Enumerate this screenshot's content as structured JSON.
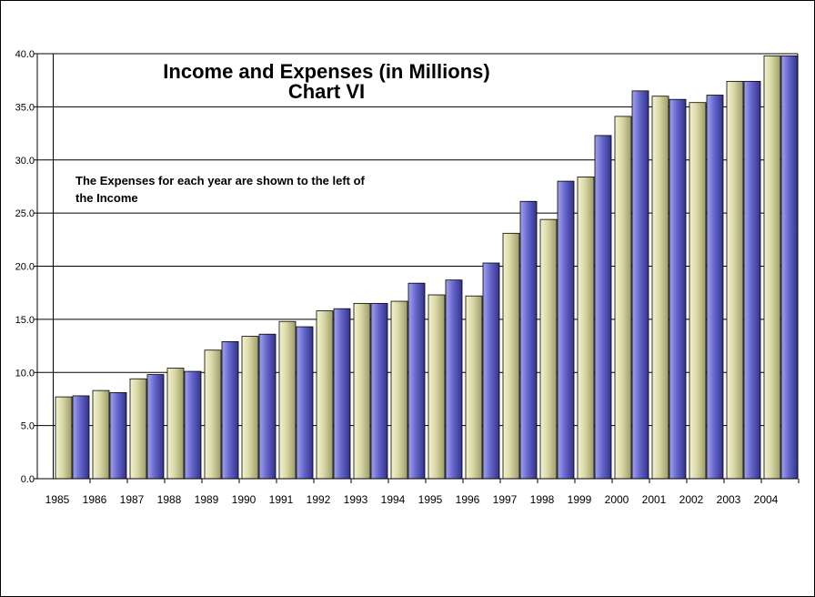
{
  "chart_data": {
    "type": "bar",
    "title": "Income and Expenses  (in Millions)",
    "subtitle": "Chart VI",
    "annotation_lines": [
      "The Expenses for each year are shown to the left of",
      "the Income"
    ],
    "categories": [
      "1985",
      "1986",
      "1987",
      "1988",
      "1989",
      "1990",
      "1991",
      "1992",
      "1993",
      "1994",
      "1995",
      "1996",
      "1997",
      "1998",
      "1999",
      "2000",
      "2001",
      "2002",
      "2003",
      "2004"
    ],
    "series": [
      {
        "color": "#d8d7a4",
        "values": [
          7.7,
          8.3,
          9.4,
          10.4,
          12.1,
          13.4,
          14.8,
          15.8,
          16.5,
          16.7,
          17.3,
          17.2,
          23.1,
          24.4,
          28.4,
          34.1,
          36.0,
          35.4,
          37.4,
          39.8
        ]
      },
      {
        "color": "#6666cc",
        "values": [
          7.8,
          8.1,
          9.8,
          10.1,
          12.9,
          13.6,
          14.3,
          16.0,
          16.5,
          18.4,
          18.7,
          20.3,
          26.1,
          28.0,
          32.3,
          36.5,
          35.7,
          36.1,
          37.4,
          39.8
        ]
      }
    ],
    "ylim": [
      0,
      40
    ],
    "yticks": [
      "0.0",
      "5.0",
      "10.0",
      "15.0",
      "20.0",
      "25.0",
      "30.0",
      "35.0",
      "40.0"
    ],
    "grid": true,
    "legend": "none"
  }
}
